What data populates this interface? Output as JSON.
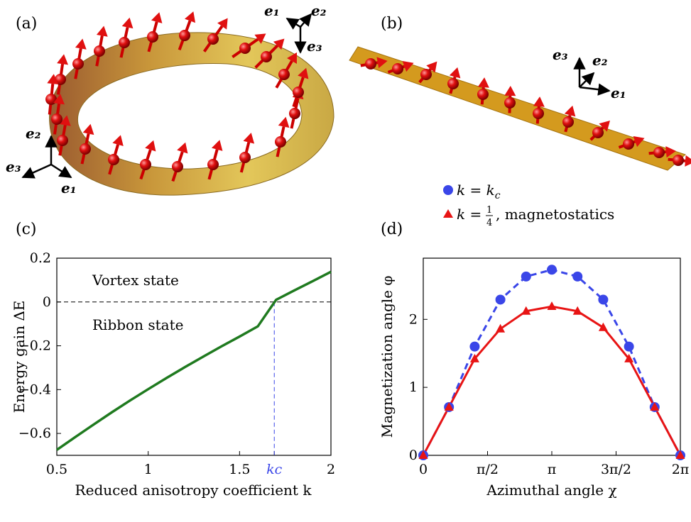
{
  "panels": {
    "a": "(a)",
    "b": "(b)",
    "c": "(c)",
    "d": "(d)"
  },
  "vectors": {
    "e1": "e₁",
    "e2": "e₂",
    "e3": "e₃"
  },
  "colors": {
    "ring": "#d4b646",
    "ribbon": "#d49a1e",
    "arrow": "#e01010",
    "green": "#1f7a1f",
    "blue": "#3a46e8",
    "red": "#e81414"
  },
  "legend": {
    "series1": "k = k",
    "series1_sub": "c",
    "series2_prefix": "k = ",
    "series2_num": "1",
    "series2_den": "4",
    "series2_suffix": ", magnetostatics"
  },
  "chart_data": [
    {
      "type": "line",
      "panel": "c",
      "xlabel": "Reduced anisotropy coefficient k",
      "ylabel": "Energy gain ΔE",
      "xlim": [
        0.5,
        2.0
      ],
      "ylim": [
        -0.7,
        0.2
      ],
      "xticks": [
        "0.5",
        "1",
        "1.5",
        "kc",
        "2"
      ],
      "yticks": [
        "0.2",
        "0",
        "−0.2",
        "−0.4",
        "−0.6"
      ],
      "annotations": [
        "Vortex state",
        "Ribbon state"
      ],
      "kc": 1.69,
      "x": [
        0.5,
        0.6,
        0.7,
        0.8,
        0.9,
        1.0,
        1.1,
        1.2,
        1.3,
        1.4,
        1.5,
        1.6,
        1.7,
        1.8,
        1.9,
        2.0
      ],
      "y": [
        -0.675,
        -0.617,
        -0.56,
        -0.504,
        -0.45,
        -0.398,
        -0.347,
        -0.298,
        -0.25,
        -0.203,
        -0.158,
        -0.114,
        0.01,
        0.053,
        0.095,
        0.138
      ]
    },
    {
      "type": "line",
      "panel": "d",
      "xlabel": "Azimuthal angle χ",
      "ylabel": "Magnetization angle φ",
      "xlim": [
        0,
        6.2832
      ],
      "ylim": [
        0,
        2.9
      ],
      "xticks": [
        "0",
        "π/2",
        "π",
        "3π/2",
        "2π"
      ],
      "yticks": [
        "0",
        "1",
        "2"
      ],
      "series": [
        {
          "name": "k = kc",
          "x": [
            0,
            0.628,
            1.257,
            1.885,
            2.513,
            3.1416,
            3.77,
            4.398,
            5.027,
            5.655,
            6.2832
          ],
          "y": [
            0,
            0.71,
            1.6,
            2.29,
            2.63,
            2.73,
            2.63,
            2.29,
            1.6,
            0.71,
            0
          ]
        },
        {
          "name": "k = 1/4, magnetostatics",
          "x": [
            0,
            0.628,
            1.257,
            1.885,
            2.513,
            3.1416,
            3.77,
            4.398,
            5.027,
            5.655,
            6.2832
          ],
          "y": [
            0,
            0.71,
            1.42,
            1.86,
            2.12,
            2.19,
            2.12,
            1.88,
            1.42,
            0.71,
            0
          ]
        }
      ]
    }
  ]
}
